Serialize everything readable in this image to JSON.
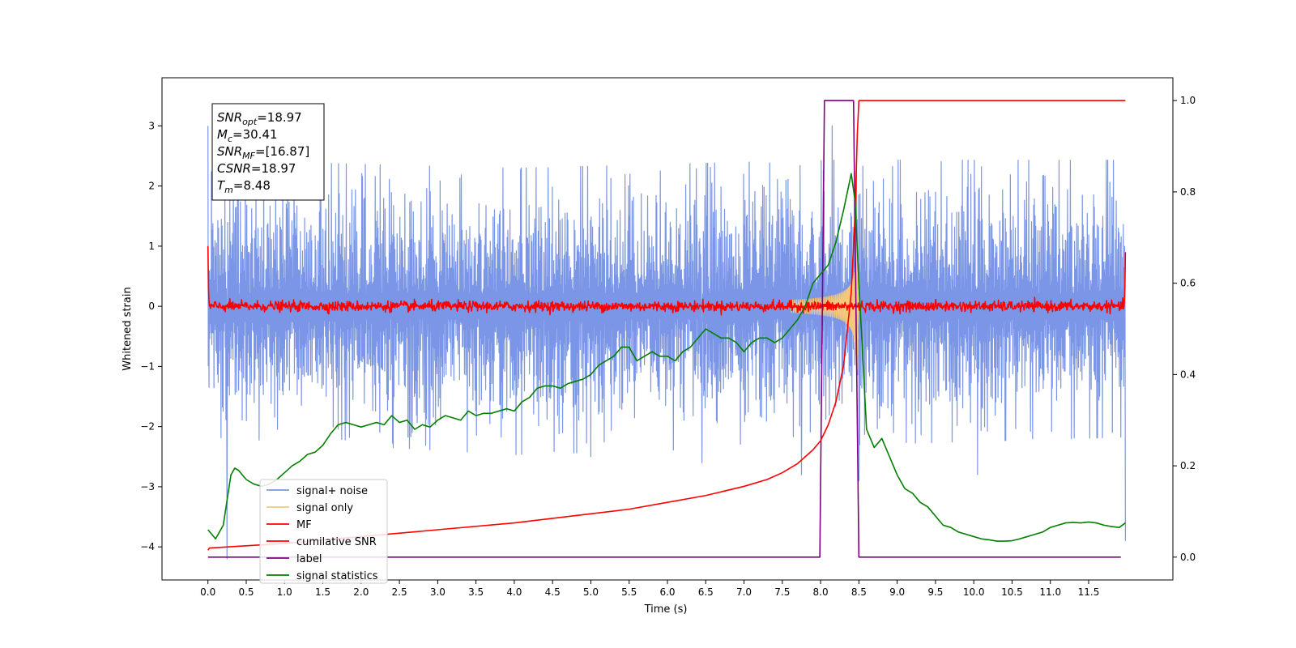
{
  "chart_data": {
    "type": "line",
    "xlabel": "Time (s)",
    "ylabel": "Whitened strain",
    "ylabel_right": "",
    "xlim": [
      -0.6,
      12.6
    ],
    "ylim": [
      -4.55,
      3.8
    ],
    "ylim_right": [
      -0.05,
      1.05
    ],
    "xticks": [
      0.0,
      0.5,
      1.0,
      1.5,
      2.0,
      2.5,
      3.0,
      3.5,
      4.0,
      4.5,
      5.0,
      5.5,
      6.0,
      6.5,
      7.0,
      7.5,
      8.0,
      8.5,
      9.0,
      9.5,
      10.0,
      10.5,
      11.0,
      11.5
    ],
    "xtick_labels": [
      "0.0",
      "0.5",
      "1.0",
      "1.5",
      "2.0",
      "2.5",
      "3.0",
      "3.5",
      "4.0",
      "4.5",
      "5.0",
      "5.5",
      "6.0",
      "6.5",
      "7.0",
      "7.5",
      "8.0",
      "8.5",
      "9.0",
      "9.5",
      "10.0",
      "10.5",
      "11.0",
      "11.5"
    ],
    "yticks_left": [
      -4,
      -3,
      -2,
      -1,
      0,
      1,
      2,
      3
    ],
    "ytick_labels_left": [
      "−4",
      "−3",
      "−2",
      "−1",
      "0",
      "1",
      "2",
      "3"
    ],
    "yticks_right": [
      0.0,
      0.2,
      0.4,
      0.6,
      0.8,
      1.0
    ],
    "ytick_labels_right": [
      "0.0",
      "0.2",
      "0.4",
      "0.6",
      "0.8",
      "1.0"
    ],
    "grid": false,
    "legend_position": "lower-left",
    "annotation": {
      "lines": [
        {
          "base": "SNR",
          "sub": "opt",
          "value": "=18.97"
        },
        {
          "base": "M",
          "sub": "c",
          "value": "=30.41"
        },
        {
          "base": "SNR",
          "sub": "MF",
          "value": "=[16.87]"
        },
        {
          "base": "CSNR",
          "sub": "",
          "value": "=18.97"
        },
        {
          "base": "T",
          "sub": "m",
          "value": "=8.48"
        }
      ]
    },
    "series": [
      {
        "name": "signal+ noise",
        "axis": "left",
        "color": "#7b96e6",
        "description_type": "noise",
        "x_range": [
          0.0,
          11.98
        ],
        "envelope_pos": [
          [
            0.0,
            1.8
          ],
          [
            4.0,
            1.7
          ],
          [
            8.0,
            1.8
          ],
          [
            11.98,
            1.8
          ]
        ],
        "envelope_neg": [
          [
            0.0,
            -1.5
          ],
          [
            4.0,
            -1.7
          ],
          [
            8.0,
            -1.6
          ],
          [
            11.98,
            -1.5
          ]
        ],
        "spikes": [
          [
            0.0,
            3.0
          ],
          [
            0.25,
            -4.2
          ],
          [
            8.15,
            3.0
          ],
          [
            8.5,
            -2.9
          ],
          [
            11.98,
            -3.9
          ],
          [
            0.5,
            -1.9
          ],
          [
            5.0,
            -2.5
          ],
          [
            10.05,
            -2.8
          ],
          [
            6.45,
            -2.6
          ],
          [
            7.75,
            -2.8
          ]
        ]
      },
      {
        "name": "signal only",
        "axis": "left",
        "color": "#f5c87a",
        "description_type": "chirp",
        "x_range": [
          7.6,
          8.5
        ],
        "peak_time": 8.48,
        "peak_amplitude": 1.1
      },
      {
        "name": "MF",
        "axis": "left",
        "color": "#ff0000",
        "description_type": "noise",
        "x_range": [
          0.0,
          11.98
        ],
        "amplitude": 0.07,
        "edge_values": [
          1.0,
          0.9
        ]
      },
      {
        "name": "cumilative SNR",
        "axis": "right",
        "color": "#ff0000",
        "x": [
          0.0,
          0.02,
          1.0,
          2.0,
          3.0,
          4.0,
          5.0,
          5.5,
          6.0,
          6.5,
          7.0,
          7.3,
          7.5,
          7.7,
          7.9,
          8.0,
          8.1,
          8.2,
          8.3,
          8.4,
          8.45,
          8.48,
          8.5,
          9.0,
          10.0,
          11.0,
          11.98
        ],
        "y": [
          0.015,
          0.02,
          0.03,
          0.045,
          0.06,
          0.075,
          0.095,
          0.105,
          0.12,
          0.135,
          0.155,
          0.17,
          0.185,
          0.205,
          0.235,
          0.255,
          0.29,
          0.34,
          0.42,
          0.58,
          0.75,
          0.93,
          1.0,
          1.0,
          1.0,
          1.0,
          1.0
        ]
      },
      {
        "name": "label",
        "axis": "right",
        "color": "#800080",
        "x": [
          0.0,
          7.99,
          8.05,
          8.43,
          8.5,
          11.92
        ],
        "y": [
          0.0,
          0.0,
          1.0,
          1.0,
          0.0,
          0.0
        ]
      },
      {
        "name": "signal statistics",
        "axis": "right",
        "color": "#008000",
        "x": [
          0.0,
          0.1,
          0.2,
          0.3,
          0.35,
          0.4,
          0.5,
          0.6,
          0.7,
          0.8,
          0.9,
          1.0,
          1.1,
          1.2,
          1.3,
          1.4,
          1.5,
          1.6,
          1.7,
          1.8,
          1.9,
          2.0,
          2.1,
          2.2,
          2.3,
          2.4,
          2.5,
          2.6,
          2.7,
          2.8,
          2.9,
          3.0,
          3.1,
          3.2,
          3.3,
          3.4,
          3.5,
          3.6,
          3.7,
          3.8,
          3.9,
          4.0,
          4.1,
          4.2,
          4.3,
          4.4,
          4.5,
          4.6,
          4.7,
          4.8,
          4.9,
          5.0,
          5.1,
          5.2,
          5.3,
          5.4,
          5.5,
          5.6,
          5.7,
          5.8,
          5.9,
          6.0,
          6.1,
          6.2,
          6.3,
          6.4,
          6.5,
          6.6,
          6.7,
          6.8,
          6.9,
          7.0,
          7.1,
          7.2,
          7.3,
          7.4,
          7.5,
          7.6,
          7.7,
          7.8,
          7.9,
          8.0,
          8.1,
          8.2,
          8.3,
          8.35,
          8.4,
          8.45,
          8.5,
          8.6,
          8.7,
          8.8,
          8.9,
          9.0,
          9.1,
          9.2,
          9.3,
          9.4,
          9.5,
          9.6,
          9.7,
          9.8,
          9.9,
          10.0,
          10.1,
          10.2,
          10.3,
          10.4,
          10.5,
          10.6,
          10.7,
          10.8,
          10.9,
          11.0,
          11.1,
          11.2,
          11.3,
          11.4,
          11.5,
          11.6,
          11.7,
          11.8,
          11.9,
          11.98
        ],
        "y": [
          0.06,
          0.04,
          0.07,
          0.18,
          0.195,
          0.19,
          0.17,
          0.16,
          0.155,
          0.16,
          0.17,
          0.185,
          0.2,
          0.21,
          0.225,
          0.23,
          0.245,
          0.27,
          0.29,
          0.295,
          0.29,
          0.285,
          0.29,
          0.295,
          0.29,
          0.31,
          0.295,
          0.3,
          0.28,
          0.29,
          0.285,
          0.3,
          0.31,
          0.305,
          0.3,
          0.32,
          0.31,
          0.315,
          0.315,
          0.32,
          0.325,
          0.32,
          0.34,
          0.35,
          0.37,
          0.375,
          0.375,
          0.37,
          0.38,
          0.385,
          0.39,
          0.4,
          0.42,
          0.43,
          0.44,
          0.46,
          0.46,
          0.43,
          0.44,
          0.45,
          0.44,
          0.44,
          0.43,
          0.45,
          0.46,
          0.48,
          0.5,
          0.49,
          0.48,
          0.48,
          0.47,
          0.45,
          0.47,
          0.48,
          0.48,
          0.47,
          0.48,
          0.5,
          0.52,
          0.55,
          0.6,
          0.62,
          0.64,
          0.69,
          0.76,
          0.8,
          0.84,
          0.78,
          0.6,
          0.28,
          0.24,
          0.26,
          0.22,
          0.18,
          0.15,
          0.14,
          0.12,
          0.11,
          0.09,
          0.07,
          0.065,
          0.055,
          0.05,
          0.045,
          0.04,
          0.038,
          0.035,
          0.035,
          0.036,
          0.04,
          0.045,
          0.05,
          0.055,
          0.065,
          0.07,
          0.075,
          0.076,
          0.075,
          0.077,
          0.075,
          0.07,
          0.067,
          0.065,
          0.075
        ]
      }
    ]
  }
}
